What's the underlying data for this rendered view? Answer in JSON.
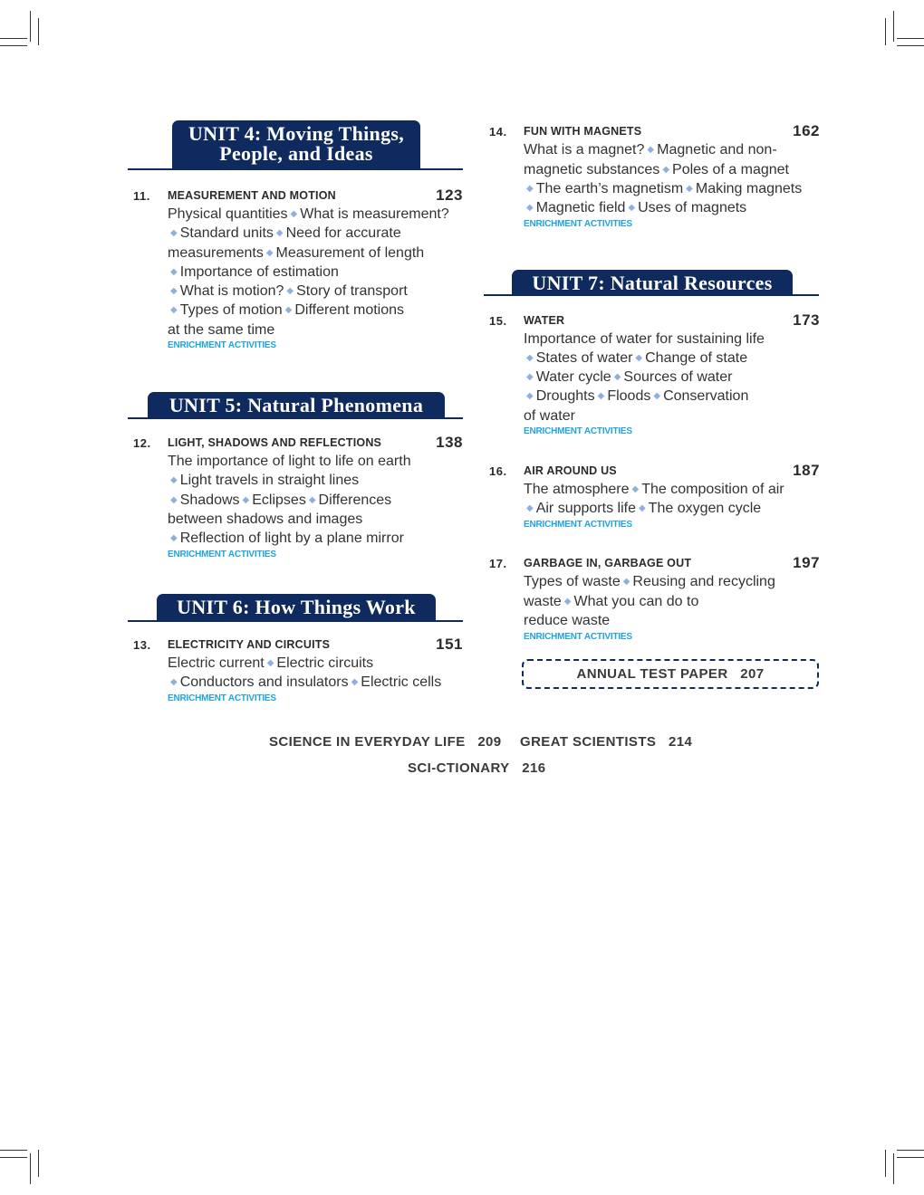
{
  "colors": {
    "banner": "#0e2a5e",
    "bullet": "#8fb0dc",
    "enrichment": "#1ea4e3"
  },
  "bullet_icon": "diamond",
  "units": [
    {
      "label_lines": [
        "UNIT 4: Moving Things,",
        "People, and Ideas"
      ]
    },
    {
      "label_lines": [
        "UNIT 5: Natural Phenomena"
      ]
    },
    {
      "label_lines": [
        "UNIT 6: How Things Work"
      ]
    },
    {
      "label_lines": [
        "UNIT 7: Natural Resources"
      ]
    }
  ],
  "chapters": [
    {
      "number": "11.",
      "title": "MEASUREMENT AND MOTION",
      "page": "123",
      "lines": [
        "Physical quantities ◆ What is measurement?",
        "◆ Standard units ◆ Need for accurate",
        "measurements ◆ Measurement of length",
        "◆ Importance of estimation",
        "◆ What is motion? ◆ Story of transport",
        "◆ Types of motion ◆ Different motions",
        "at the same time"
      ],
      "enrichment": "ENRICHMENT ACTIVITIES"
    },
    {
      "number": "12.",
      "title": "LIGHT, SHADOWS AND REFLECTIONS",
      "page": "138",
      "lines": [
        "The importance of light to life on earth",
        "◆ Light travels in straight lines",
        "◆ Shadows ◆ Eclipses ◆ Differences",
        "between shadows and images",
        "◆ Reflection of light by a plane mirror"
      ],
      "enrichment": "ENRICHMENT ACTIVITIES"
    },
    {
      "number": "13.",
      "title": "ELECTRICITY AND CIRCUITS",
      "page": "151",
      "lines": [
        "Electric current ◆ Electric circuits",
        "◆ Conductors and insulators ◆ Electric cells"
      ],
      "enrichment": "ENRICHMENT ACTIVITIES"
    },
    {
      "number": "14.",
      "title": "FUN WITH MAGNETS",
      "page": "162",
      "lines": [
        "What is a magnet? ◆ Magnetic and non-",
        "magnetic substances ◆ Poles of a magnet",
        "◆ The earth’s magnetism ◆ Making magnets",
        "◆ Magnetic field ◆ Uses of magnets"
      ],
      "enrichment": "ENRICHMENT ACTIVITIES"
    },
    {
      "number": "15.",
      "title": "WATER",
      "page": "173",
      "lines": [
        "Importance of water for sustaining life",
        "◆ States of water ◆ Change of state",
        "◆ Water cycle ◆ Sources of water",
        "◆ Droughts ◆ Floods ◆ Conservation",
        "of water"
      ],
      "enrichment": "ENRICHMENT ACTIVITIES"
    },
    {
      "number": "16.",
      "title": "AIR AROUND US",
      "page": "187",
      "lines": [
        "The atmosphere ◆ The composition of air",
        "◆ Air supports life ◆ The oxygen cycle"
      ],
      "enrichment": "ENRICHMENT ACTIVITIES"
    },
    {
      "number": "17.",
      "title": "GARBAGE IN, GARBAGE OUT",
      "page": "197",
      "lines": [
        "Types of waste ◆ Reusing and recycling",
        "waste ◆ What you can do to",
        "reduce waste"
      ],
      "enrichment": "ENRICHMENT ACTIVITIES"
    }
  ],
  "annual_test": {
    "label": "ANNUAL TEST PAPER",
    "page": "207"
  },
  "footer": [
    {
      "label": "SCIENCE IN EVERYDAY LIFE",
      "page": "209"
    },
    {
      "label": "GREAT SCIENTISTS",
      "page": "214"
    },
    {
      "label": "SCI-CTIONARY",
      "page": "216"
    }
  ]
}
